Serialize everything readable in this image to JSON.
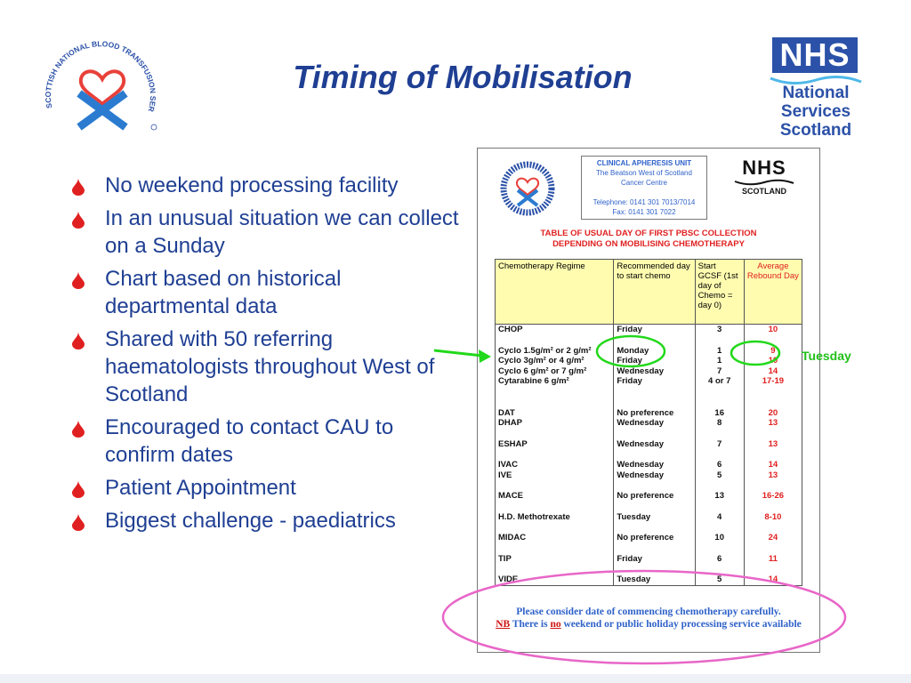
{
  "slide": {
    "title": "Timing of Mobilisation",
    "bullets": [
      "No weekend processing facility",
      "In an unusual situation we can collect on a Sunday",
      "Chart based on historical departmental data",
      "Shared with 50 referring haematologists throughout West of Scotland",
      "Encouraged to contact CAU to confirm dates",
      "Patient Appointment",
      "Biggest challenge - paediatrics"
    ],
    "annotation_label": "Tuesday"
  },
  "logos": {
    "snbts_text": "SCOTTISH NATIONAL BLOOD TRANSFUSION SERVICE",
    "nhs_mark": "NHS",
    "nhs_line1": "National",
    "nhs_line2": "Services",
    "nhs_line3": "Scotland"
  },
  "document": {
    "cau": {
      "title": "CLINICAL APHERESIS UNIT",
      "line1": "The Beatson West of Scotland",
      "line2": "Cancer Centre",
      "phone": "Telephone: 0141 301 7013/7014",
      "fax": "Fax: 0141 301 7022"
    },
    "nhs_mark": "NHS",
    "nhs_region": "SCOTLAND",
    "heading_line1": "TABLE OF USUAL DAY OF FIRST PBSC COLLECTION",
    "heading_line2": "DEPENDING ON MOBILISING CHEMOTHERAPY",
    "table": {
      "headers": [
        "Chemotherapy Regime",
        "Recommended day to start chemo",
        "Start GCSF (1st day of Chemo = day 0)",
        "Average Rebound Day"
      ],
      "rows": [
        [
          "CHOP",
          "Friday",
          "3",
          "10"
        ],
        [
          "Cyclo 1.5g/m² or 2 g/m²",
          "Monday",
          "1",
          "9"
        ],
        [
          "Cyclo 3g/m² or 4 g/m²",
          "Friday",
          "1",
          "10"
        ],
        [
          "Cyclo 6 g/m² or 7 g/m²",
          "Wednesday",
          "7",
          "14"
        ],
        [
          "Cytarabine 6 g/m²",
          "Friday",
          "4 or 7",
          "17-19"
        ],
        [
          "DAT",
          "No preference",
          "16",
          "20"
        ],
        [
          "DHAP",
          "Wednesday",
          "8",
          "13"
        ],
        [
          "ESHAP",
          "Wednesday",
          "7",
          "13"
        ],
        [
          "IVAC",
          "Wednesday",
          "6",
          "14"
        ],
        [
          "IVE",
          "Wednesday",
          "5",
          "13"
        ],
        [
          "MACE",
          "No preference",
          "13",
          "16-26"
        ],
        [
          "H.D. Methotrexate",
          "Tuesday",
          "4",
          "8-10"
        ],
        [
          "MIDAC",
          "No preference",
          "10",
          "24"
        ],
        [
          "TIP",
          "Friday",
          "6",
          "11"
        ],
        [
          "VIDE",
          "Tuesday",
          "5",
          "14"
        ]
      ]
    },
    "note_line1": "Please consider date of commencing chemotherapy carefully.",
    "note_nb": "NB",
    "note_mid1": " There is ",
    "note_no": "no",
    "note_mid2": " weekend or public holiday processing service available"
  },
  "colors": {
    "title_blue": "#1f3f93",
    "bullet_red": "#e02020",
    "nhs_blue": "#2b51a8",
    "annotation_green": "#22c01a",
    "annotation_pink": "#e866c8"
  },
  "icons": [
    "snbts-logo-icon",
    "nhs-logo-icon",
    "bullet-drop-icon",
    "arrow-icon"
  ]
}
